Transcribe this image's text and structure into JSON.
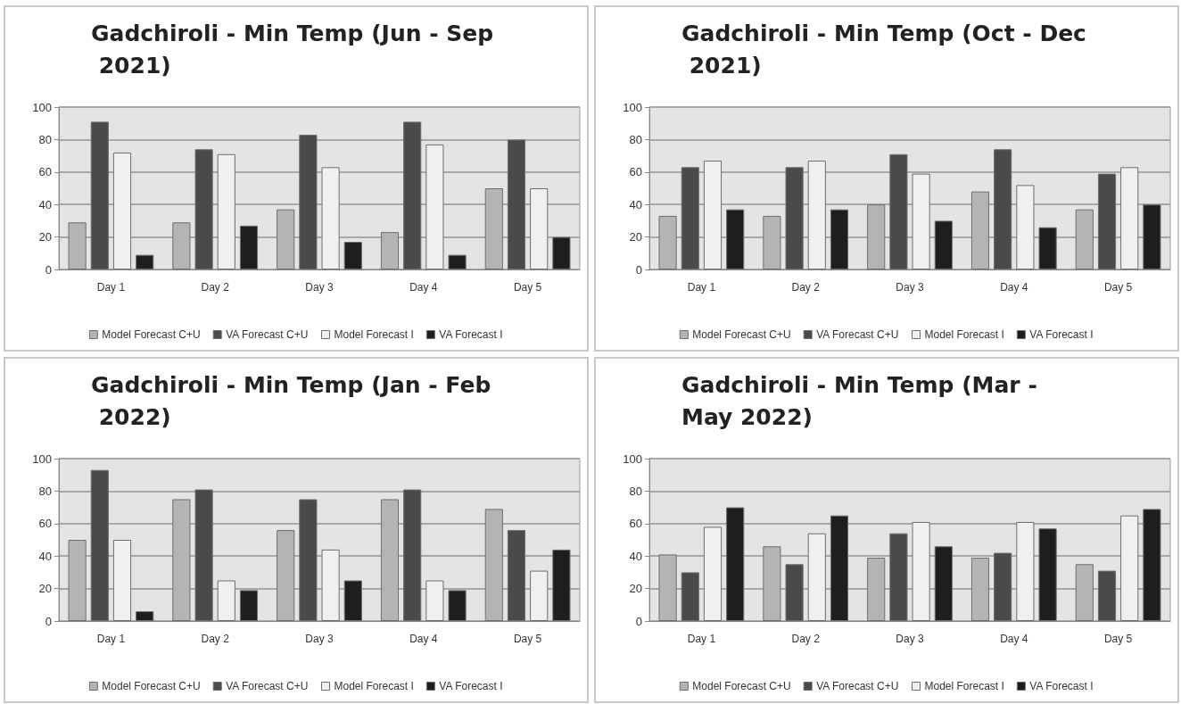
{
  "chart_data": [
    {
      "type": "bar",
      "title": "Gadchiroli - Min Temp (Jun - Sep 2021)",
      "categories": [
        "Day 1",
        "Day 2",
        "Day 3",
        "Day 4",
        "Day 5"
      ],
      "ylim": [
        0,
        100
      ],
      "yticks": [
        0,
        20,
        40,
        60,
        80,
        100
      ],
      "grid": "y",
      "legend": "bottom",
      "series": [
        {
          "name": "Model Forecast C+U",
          "color": "#b4b4b4",
          "values": [
            29,
            29,
            37,
            23,
            50
          ]
        },
        {
          "name": "VA Forecast C+U",
          "color": "#4a4a4a",
          "values": [
            91,
            74,
            83,
            91,
            80
          ]
        },
        {
          "name": "Model Forecast I",
          "color": "#f0f0f0",
          "values": [
            72,
            71,
            63,
            77,
            50
          ]
        },
        {
          "name": "VA Forecast I",
          "color": "#1e1e1e",
          "values": [
            9,
            27,
            17,
            9,
            20
          ]
        }
      ]
    },
    {
      "type": "bar",
      "title": "Gadchiroli - Min Temp (Oct - Dec 2021)",
      "categories": [
        "Day 1",
        "Day 2",
        "Day 3",
        "Day 4",
        "Day 5"
      ],
      "ylim": [
        0,
        100
      ],
      "yticks": [
        0,
        20,
        40,
        60,
        80,
        100
      ],
      "grid": "y",
      "legend": "bottom",
      "series": [
        {
          "name": "Model Forecast C+U",
          "color": "#b4b4b4",
          "values": [
            33,
            33,
            40,
            48,
            37
          ]
        },
        {
          "name": "VA Forecast C+U",
          "color": "#4a4a4a",
          "values": [
            63,
            63,
            71,
            74,
            59
          ]
        },
        {
          "name": "Model Forecast I",
          "color": "#f0f0f0",
          "values": [
            67,
            67,
            59,
            52,
            63
          ]
        },
        {
          "name": "VA Forecast I",
          "color": "#1e1e1e",
          "values": [
            37,
            37,
            30,
            26,
            40
          ]
        }
      ]
    },
    {
      "type": "bar",
      "title": "Gadchiroli - Min Temp (Jan - Feb 2022)",
      "categories": [
        "Day 1",
        "Day 2",
        "Day 3",
        "Day 4",
        "Day 5"
      ],
      "ylim": [
        0,
        100
      ],
      "yticks": [
        0,
        20,
        40,
        60,
        80,
        100
      ],
      "grid": "y",
      "legend": "bottom",
      "series": [
        {
          "name": "Model Forecast C+U",
          "color": "#b4b4b4",
          "values": [
            50,
            75,
            56,
            75,
            69
          ]
        },
        {
          "name": "VA Forecast C+U",
          "color": "#4a4a4a",
          "values": [
            93,
            81,
            75,
            81,
            56
          ]
        },
        {
          "name": "Model Forecast I",
          "color": "#f0f0f0",
          "values": [
            50,
            25,
            44,
            25,
            31
          ]
        },
        {
          "name": "VA Forecast I",
          "color": "#1e1e1e",
          "values": [
            6,
            19,
            25,
            19,
            44
          ]
        }
      ]
    },
    {
      "type": "bar",
      "title": "Gadchiroli - Min Temp (Mar - May 2022)",
      "categories": [
        "Day 1",
        "Day 2",
        "Day 3",
        "Day 4",
        "Day 5"
      ],
      "ylim": [
        0,
        100
      ],
      "yticks": [
        0,
        20,
        40,
        60,
        80,
        100
      ],
      "grid": "y",
      "legend": "bottom",
      "series": [
        {
          "name": "Model Forecast C+U",
          "color": "#b4b4b4",
          "values": [
            41,
            46,
            39,
            39,
            35
          ]
        },
        {
          "name": "VA Forecast C+U",
          "color": "#4a4a4a",
          "values": [
            30,
            35,
            54,
            42,
            31
          ]
        },
        {
          "name": "Model Forecast I",
          "color": "#f0f0f0",
          "values": [
            58,
            54,
            61,
            61,
            65
          ]
        },
        {
          "name": "VA Forecast I",
          "color": "#1e1e1e",
          "values": [
            70,
            65,
            46,
            57,
            69
          ]
        }
      ]
    }
  ]
}
